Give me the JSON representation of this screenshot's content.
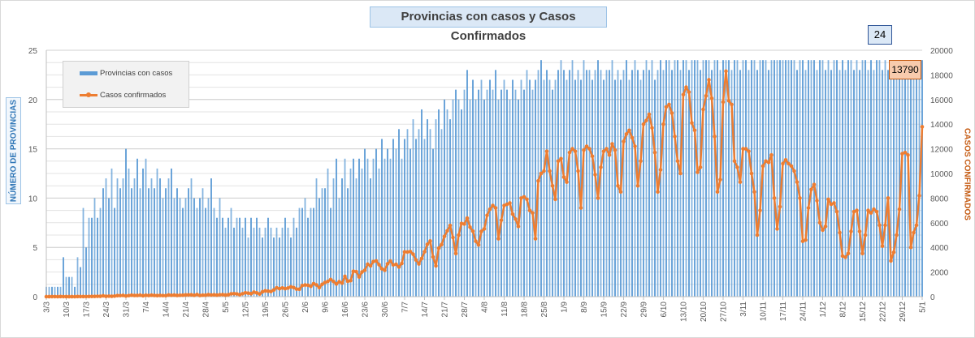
{
  "chart_data": {
    "type": "bar+line",
    "title": "Provincias con casos y Casos Confirmados",
    "ylabel_left": "NÚMERO DE PROVINCIAS",
    "ylabel_right": "CASOS CONFIRMADOS",
    "ylim_left": [
      0,
      25
    ],
    "ylim_right": [
      0,
      20000
    ],
    "yticks_left": [
      "0",
      "5",
      "10",
      "15",
      "20",
      "25"
    ],
    "yticks_right": [
      "0",
      "2000",
      "4000",
      "6000",
      "8000",
      "10000",
      "12000",
      "14000",
      "16000",
      "18000",
      "20000"
    ],
    "x_tick_labels": [
      "3/3",
      "10/3",
      "17/3",
      "24/3",
      "31/3",
      "7/4",
      "14/4",
      "21/4",
      "28/4",
      "5/5",
      "12/5",
      "19/5",
      "26/5",
      "2/6",
      "9/6",
      "16/6",
      "23/6",
      "30/6",
      "7/7",
      "14/7",
      "21/7",
      "28/7",
      "4/8",
      "11/8",
      "18/8",
      "25/8",
      "1/9",
      "8/9",
      "15/9",
      "22/9",
      "29/9",
      "6/10",
      "13/10",
      "20/10",
      "27/10",
      "3/11",
      "10/11",
      "17/11",
      "24/11",
      "1/12",
      "8/12",
      "15/12",
      "22/12",
      "29/12",
      "5/1"
    ],
    "grid": true,
    "legend_position": "top-left",
    "colors": {
      "provincias": "#5b9bd5",
      "casos": "#ed7d31"
    },
    "series": [
      {
        "name": "Provincias con casos",
        "type": "bar",
        "axis": "left",
        "values": [
          1,
          1,
          1,
          1,
          1,
          1,
          4,
          2,
          2,
          2,
          1,
          4,
          3,
          9,
          5,
          8,
          8,
          10,
          8,
          9,
          11,
          12,
          10,
          13,
          9,
          12,
          11,
          12,
          15,
          13,
          11,
          12,
          14,
          11,
          13,
          14,
          11,
          12,
          11,
          13,
          12,
          10,
          11,
          12,
          13,
          10,
          11,
          10,
          9,
          10,
          11,
          12,
          10,
          9,
          10,
          11,
          9,
          10,
          12,
          9,
          8,
          10,
          8,
          7,
          8,
          9,
          7,
          8,
          8,
          7,
          8,
          6,
          8,
          7,
          8,
          7,
          6,
          7,
          8,
          7,
          6,
          7,
          6,
          7,
          8,
          7,
          6,
          8,
          7,
          9,
          9,
          10,
          8,
          9,
          9,
          12,
          10,
          11,
          11,
          13,
          9,
          12,
          14,
          10,
          12,
          14,
          11,
          13,
          14,
          12,
          14,
          13,
          15,
          14,
          12,
          14,
          15,
          13,
          16,
          14,
          15,
          14,
          16,
          15,
          17,
          14,
          16,
          17,
          15,
          18,
          16,
          17,
          19,
          16,
          18,
          17,
          15,
          18,
          19,
          17,
          20,
          19,
          18,
          20,
          21,
          20,
          19,
          21,
          23,
          20,
          22,
          20,
          21,
          22,
          20,
          21,
          22,
          21,
          23,
          20,
          21,
          22,
          21,
          20,
          22,
          21,
          20,
          22,
          21,
          23,
          22,
          21,
          22,
          23,
          24,
          22,
          23,
          22,
          21,
          22,
          23,
          24,
          23,
          22,
          23,
          24,
          22,
          23,
          22,
          24,
          23,
          23,
          22,
          23,
          24,
          23,
          22,
          23,
          23,
          24,
          22,
          23,
          22,
          23,
          24,
          22,
          23,
          24,
          23,
          22,
          23,
          24,
          23,
          24,
          22,
          23,
          24,
          23,
          24,
          24,
          23,
          24,
          24,
          23,
          24,
          24,
          23,
          24,
          24,
          24,
          23,
          24,
          24,
          24,
          23,
          24,
          24,
          23,
          24,
          24,
          24,
          23,
          24,
          24,
          23,
          24,
          24,
          23,
          24,
          24,
          23,
          24,
          24,
          24,
          23,
          24,
          24,
          24,
          24,
          24,
          24,
          24,
          24,
          24,
          23,
          24,
          24,
          23,
          24,
          24,
          24,
          23,
          24,
          24,
          23,
          24,
          23,
          24,
          24,
          23,
          24,
          23,
          24,
          24,
          23,
          24,
          23,
          24,
          24,
          23,
          24,
          23,
          24,
          24,
          23,
          24,
          23,
          24,
          24,
          23,
          24,
          24,
          23,
          24,
          23,
          24,
          23,
          24,
          24
        ]
      },
      {
        "name": "Casos confirmados",
        "type": "line",
        "axis": "right",
        "values": [
          1,
          1,
          5,
          5,
          2,
          12,
          5,
          2,
          4,
          2,
          3,
          10,
          11,
          11,
          9,
          13,
          18,
          21,
          31,
          30,
          67,
          27,
          41,
          32,
          47,
          86,
          87,
          101,
          55,
          88,
          122,
          98,
          100,
          120,
          75,
          113,
          96,
          120,
          101,
          88,
          100,
          90,
          86,
          138,
          115,
          130,
          100,
          115,
          121,
          143,
          145,
          150,
          112,
          173,
          102,
          124,
          125,
          162,
          140,
          150,
          128,
          156,
          166,
          133,
          160,
          231,
          245,
          220,
          165,
          238,
          316,
          285,
          240,
          366,
          306,
          215,
          396,
          470,
          445,
          420,
          544,
          720,
          648,
          704,
          652,
          702,
          795,
          733,
          616,
          602,
          904,
          949,
          929,
          840,
          1060,
          950,
          738,
          1000,
          1150,
          1240,
          1391,
          1228,
          1030,
          1212,
          1100,
          1650,
          1250,
          1300,
          2060,
          2032,
          1600,
          2000,
          2146,
          2635,
          2500,
          2845,
          2900,
          2600,
          2262,
          2150,
          2667,
          2890,
          2580,
          2632,
          2413,
          2700,
          3632,
          3624,
          3663,
          3449,
          2979,
          2657,
          3099,
          3645,
          4250,
          4518,
          3223,
          2500,
          3937,
          4231,
          4890,
          5344,
          5782,
          4800,
          3500,
          5000,
          5939,
          5900,
          6377,
          5641,
          5320,
          4500,
          4200,
          5300,
          5500,
          6600,
          7100,
          7400,
          7200,
          4700,
          6200,
          7400,
          7500,
          7600,
          6700,
          6300,
          5700,
          8000,
          8100,
          7900,
          7000,
          6800,
          4700,
          9400,
          10000,
          10200,
          11800,
          10200,
          9000,
          7900,
          11000,
          11200,
          9700,
          9300,
          11700,
          12000,
          11800,
          10200,
          7200,
          11900,
          12200,
          12000,
          11400,
          9900,
          8000,
          10500,
          11800,
          12000,
          11500,
          12400,
          11900,
          9000,
          8500,
          12600,
          13200,
          13500,
          12900,
          12200,
          9000,
          11000,
          14000,
          14300,
          14800,
          13700,
          11700,
          8500,
          10300,
          14000,
          15400,
          15600,
          14900,
          13000,
          11000,
          10000,
          16400,
          17000,
          16600,
          14100,
          13500,
          10100,
          10500,
          15200,
          16300,
          17600,
          16100,
          13000,
          8500,
          9500,
          15800,
          18300,
          15900,
          15600,
          11000,
          10500,
          9300,
          12000,
          12000,
          11800,
          10000,
          8500,
          5000,
          7000,
          10600,
          11000,
          10900,
          11500,
          8000,
          5500,
          7300,
          10800,
          11100,
          10800,
          10600,
          10200,
          9300,
          8000,
          4500,
          4600,
          7200,
          8700,
          9100,
          7800,
          6000,
          5400,
          5700,
          7900,
          7500,
          7600,
          6900,
          5200,
          3300,
          3200,
          3500,
          5300,
          6900,
          7000,
          5300,
          3500,
          5000,
          7000,
          6800,
          7100,
          6900,
          5800,
          4100,
          5800,
          8000,
          2900,
          3600,
          5000,
          7100,
          11600,
          11700,
          11500,
          4000,
          5200,
          5800,
          8200,
          13790
        ]
      }
    ],
    "annotations": {
      "last_provincias": "24",
      "last_casos": "13790"
    }
  }
}
